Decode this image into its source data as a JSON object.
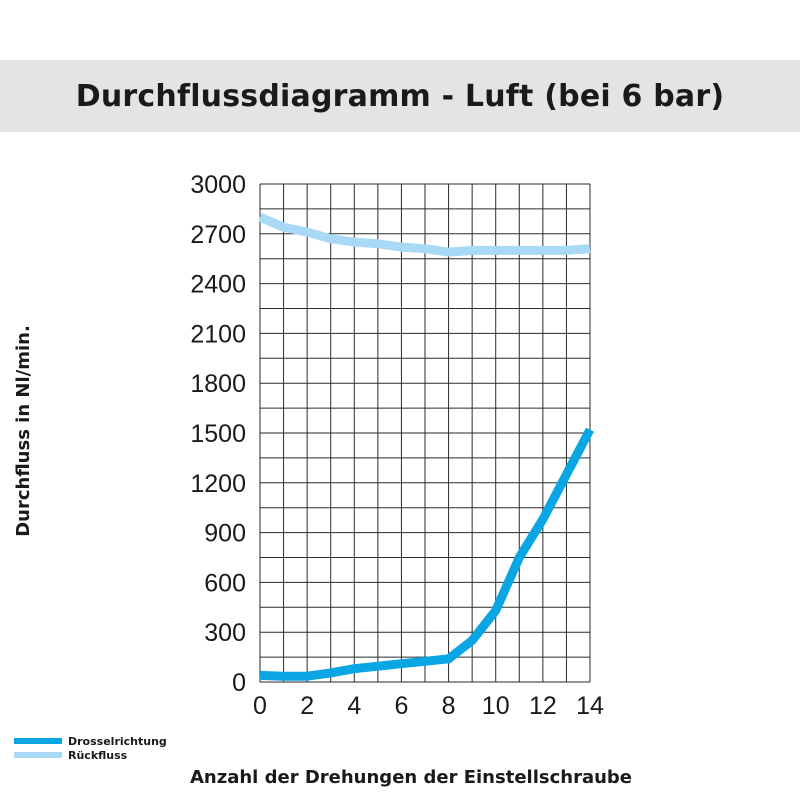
{
  "chart_data": {
    "type": "line",
    "title": "Durchflussdiagramm - Luft (bei 6 bar)",
    "xlabel": "Anzahl der Drehungen der Einstellschraube",
    "ylabel": "Durchfluss in Nl/min.",
    "xlim": [
      0,
      14
    ],
    "ylim": [
      0,
      3000
    ],
    "x_ticks": [
      0,
      2,
      4,
      6,
      8,
      10,
      12,
      14
    ],
    "y_ticks": [
      0,
      300,
      600,
      900,
      1200,
      1500,
      1800,
      2100,
      2400,
      2700,
      3000
    ],
    "grid": true,
    "legend_position": "bottom-left",
    "series": [
      {
        "name": "Drosselrichtung",
        "color": "#0aa5e3",
        "x": [
          0,
          1,
          2,
          3,
          4,
          5,
          6,
          7,
          8,
          9,
          10,
          11,
          12,
          13,
          14
        ],
        "values": [
          40,
          35,
          35,
          55,
          80,
          95,
          110,
          125,
          140,
          250,
          430,
          750,
          980,
          1250,
          1520
        ]
      },
      {
        "name": "Rückfluss",
        "color": "#a8daf5",
        "x": [
          0,
          1,
          2,
          3,
          4,
          5,
          6,
          7,
          8,
          9,
          10,
          11,
          12,
          13,
          14
        ],
        "values": [
          2800,
          2740,
          2710,
          2670,
          2650,
          2640,
          2620,
          2610,
          2590,
          2600,
          2600,
          2600,
          2600,
          2600,
          2610
        ]
      }
    ]
  }
}
